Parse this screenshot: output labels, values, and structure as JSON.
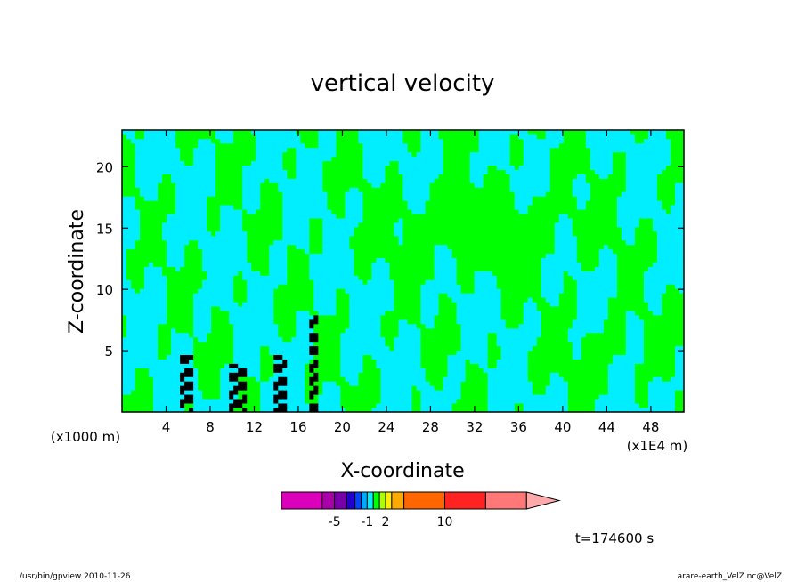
{
  "chart_data": {
    "type": "heatmap",
    "title": "vertical velocity",
    "xlabel": "X-coordinate",
    "ylabel": "Z-coordinate",
    "x_unit_label": "(x1E4 m)",
    "y_unit_label": "(x1000 m)",
    "xlim": [
      0,
      51
    ],
    "ylim": [
      0,
      23
    ],
    "x_ticks": [
      4,
      8,
      12,
      16,
      20,
      24,
      28,
      32,
      36,
      40,
      44,
      48
    ],
    "y_ticks": [
      5,
      10,
      15,
      20
    ],
    "grid": false,
    "colors": {
      "positive_small": "#00ff00",
      "negative_small": "#00eeff",
      "strong": "#000000",
      "contour": "#333333"
    },
    "colorbar": {
      "position": "bottom",
      "segments": [
        {
          "color": "#dd00bb",
          "w": 1.0
        },
        {
          "color": "#aa00aa",
          "w": 0.3
        },
        {
          "color": "#7700aa",
          "w": 0.3
        },
        {
          "color": "#2200cc",
          "w": 0.2
        },
        {
          "color": "#0044ff",
          "w": 0.15
        },
        {
          "color": "#00aaff",
          "w": 0.15
        },
        {
          "color": "#00eeff",
          "w": 0.15
        },
        {
          "color": "#00ff00",
          "w": 0.15
        },
        {
          "color": "#aaff00",
          "w": 0.15
        },
        {
          "color": "#ffee00",
          "w": 0.15
        },
        {
          "color": "#ffaa00",
          "w": 0.3
        },
        {
          "color": "#ff6600",
          "w": 1.0
        },
        {
          "color": "#ff2222",
          "w": 1.0
        },
        {
          "color": "#ff7777",
          "w": 1.0
        },
        {
          "color": "#ffaaaa",
          "w": 0.8,
          "arrow": true
        }
      ],
      "tick_labels": [
        {
          "text": "-5",
          "seg": 2
        },
        {
          "text": "-1",
          "seg": 6
        },
        {
          "text": "2",
          "seg": 9
        },
        {
          "text": "10",
          "seg": 12
        }
      ]
    },
    "time_label": "t=174600 s"
  },
  "footer": {
    "left": "/usr/bin/gpview  2010-11-26",
    "right": "arare-earth_VelZ.nc@VelZ"
  }
}
